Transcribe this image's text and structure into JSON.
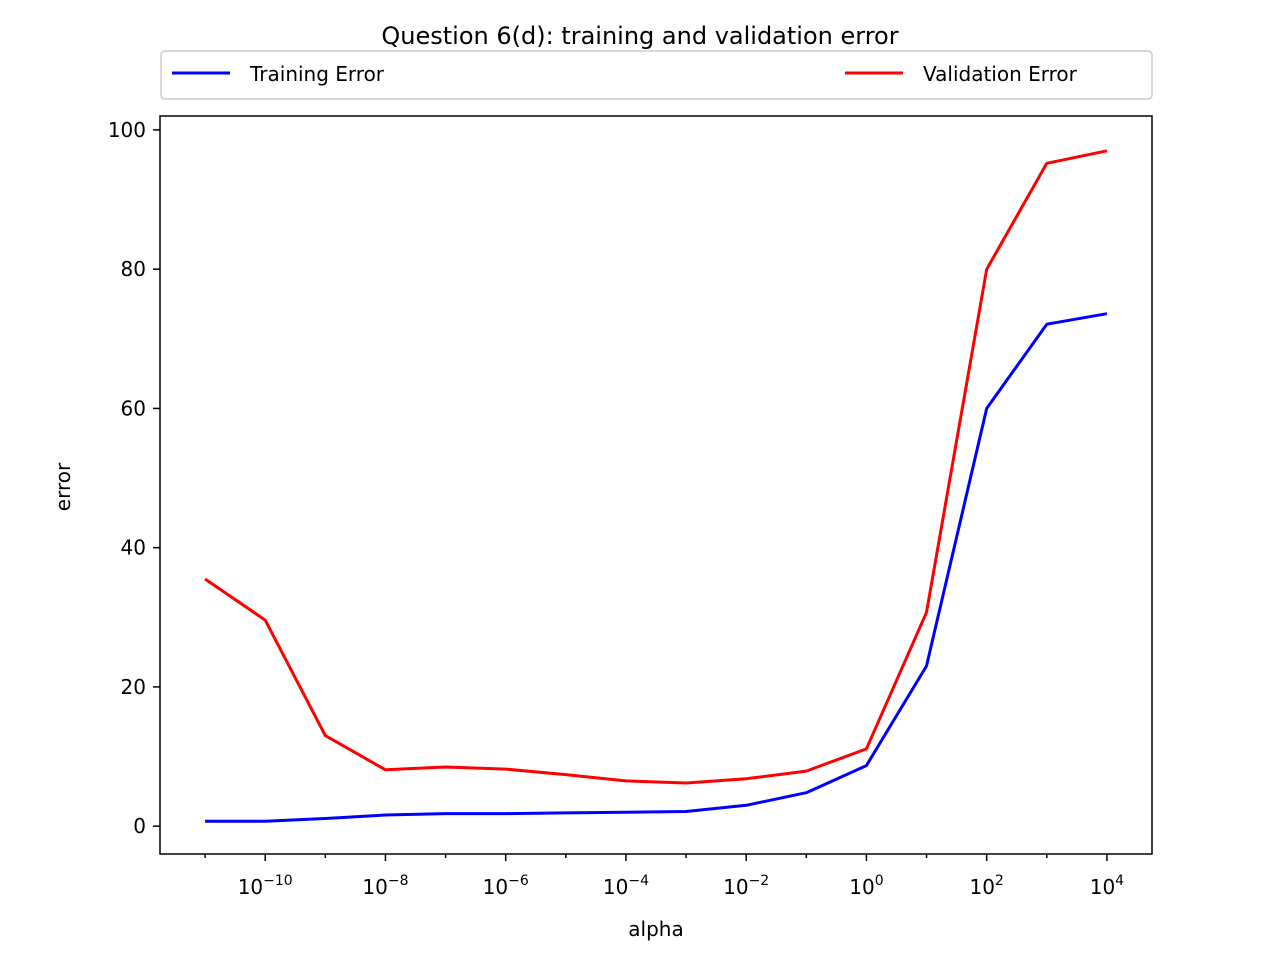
{
  "chart_data": {
    "type": "line",
    "title": "Question 6(d): training and validation error",
    "xlabel": "alpha",
    "ylabel": "error",
    "xscale": "log",
    "x_exponents": [
      -11,
      -10,
      -9,
      -8,
      -7,
      -6,
      -5,
      -4,
      -3,
      -2,
      -1,
      0,
      1,
      2,
      3,
      4
    ],
    "xlim_exponent": [
      -11.75,
      4.75
    ],
    "ylim": [
      -4,
      102
    ],
    "x_ticks": [
      {
        "base": "10",
        "exp": "−10",
        "e": -10
      },
      {
        "base": "10",
        "exp": "−8",
        "e": -8
      },
      {
        "base": "10",
        "exp": "−6",
        "e": -6
      },
      {
        "base": "10",
        "exp": "−4",
        "e": -4
      },
      {
        "base": "10",
        "exp": "−2",
        "e": -2
      },
      {
        "base": "10",
        "exp": "0",
        "e": 0
      },
      {
        "base": "10",
        "exp": "2",
        "e": 2
      },
      {
        "base": "10",
        "exp": "4",
        "e": 4
      }
    ],
    "y_ticks": [
      0,
      20,
      40,
      60,
      80,
      100
    ],
    "legend": {
      "location": "top, above plot",
      "columns": 2
    },
    "grid": false,
    "series": [
      {
        "name": "Training Error",
        "color": "#0000ff",
        "values": [
          0.7,
          0.7,
          1.1,
          1.6,
          1.8,
          1.8,
          1.9,
          2.0,
          2.1,
          3.0,
          4.8,
          8.7,
          23.0,
          60.0,
          72.1,
          73.6
        ]
      },
      {
        "name": "Validation Error",
        "color": "#ff0000",
        "values": [
          35.5,
          29.6,
          13.0,
          8.1,
          8.5,
          8.2,
          7.4,
          6.5,
          6.2,
          6.8,
          7.9,
          11.1,
          30.7,
          80.0,
          95.2,
          97.0
        ]
      }
    ]
  }
}
